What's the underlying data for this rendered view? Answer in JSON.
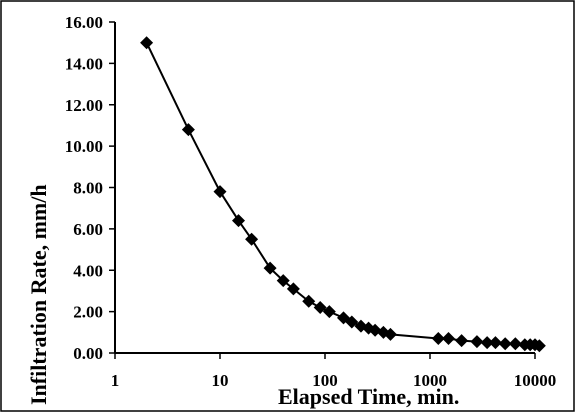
{
  "chart_data": {
    "type": "scatter",
    "title": "",
    "xlabel": "Elapsed Time, min.",
    "ylabel": "Infiltration Rate, mm/h",
    "x_scale": "log",
    "xlim": [
      1,
      10000
    ],
    "ylim": [
      0,
      16
    ],
    "x_ticks": [
      "1",
      "10",
      "100",
      "1000",
      "10000"
    ],
    "y_ticks": [
      "0.00",
      "2.00",
      "4.00",
      "6.00",
      "8.00",
      "10.00",
      "12.00",
      "14.00",
      "16.00"
    ],
    "grid": false,
    "legend": "none",
    "marker": "diamond",
    "color": "#000000",
    "series": [
      {
        "x": [
          2,
          5,
          10,
          15,
          20,
          30,
          40,
          50,
          70,
          90,
          110,
          150,
          180,
          220,
          260,
          300,
          360,
          420,
          1200,
          1500,
          2000,
          2800,
          3500,
          4200,
          5200,
          6500,
          8000,
          9000,
          10000,
          11000
        ],
        "y": [
          15.0,
          10.8,
          7.8,
          6.4,
          5.5,
          4.1,
          3.5,
          3.1,
          2.5,
          2.2,
          2.0,
          1.7,
          1.5,
          1.3,
          1.2,
          1.1,
          1.0,
          0.9,
          0.7,
          0.7,
          0.6,
          0.55,
          0.5,
          0.5,
          0.45,
          0.45,
          0.4,
          0.4,
          0.4,
          0.35
        ]
      }
    ]
  }
}
